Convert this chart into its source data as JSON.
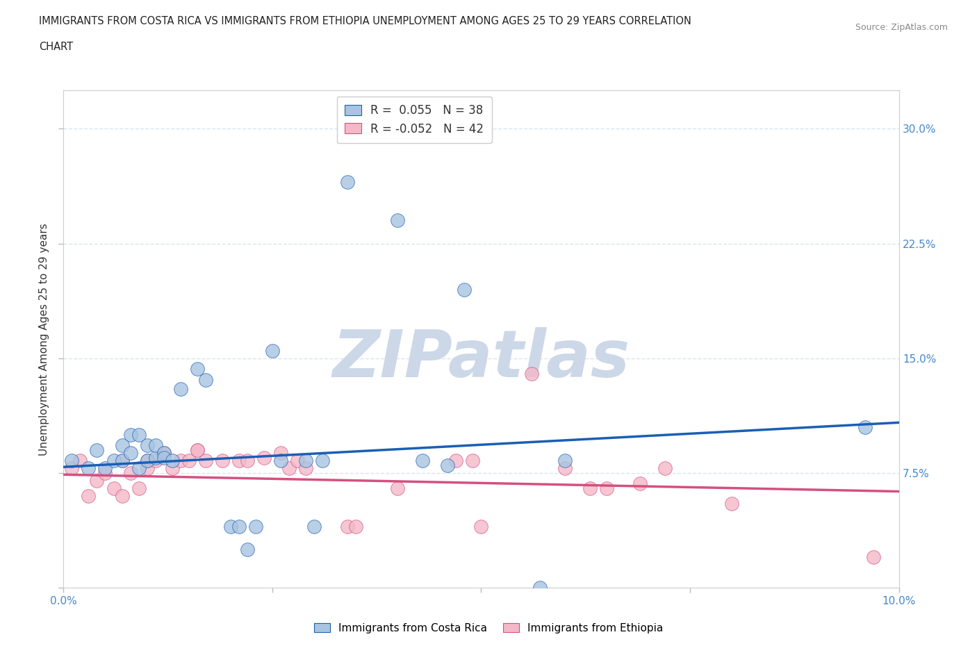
{
  "title_line1": "IMMIGRANTS FROM COSTA RICA VS IMMIGRANTS FROM ETHIOPIA UNEMPLOYMENT AMONG AGES 25 TO 29 YEARS CORRELATION",
  "title_line2": "CHART",
  "source": "Source: ZipAtlas.com",
  "ylabel": "Unemployment Among Ages 25 to 29 years",
  "xlim": [
    0.0,
    0.1
  ],
  "ylim": [
    0.0,
    0.325
  ],
  "xticks": [
    0.0,
    0.025,
    0.05,
    0.075,
    0.1
  ],
  "yticks": [
    0.0,
    0.075,
    0.15,
    0.225,
    0.3
  ],
  "blue_R": 0.055,
  "blue_N": 38,
  "pink_R": -0.052,
  "pink_N": 42,
  "blue_color": "#a8c4e0",
  "pink_color": "#f4b8c8",
  "blue_line_color": "#1a5fb4",
  "pink_line_color": "#d45080",
  "blue_trend": [
    0.079,
    0.108
  ],
  "pink_trend": [
    0.074,
    0.063
  ],
  "blue_scatter": [
    [
      0.001,
      0.083
    ],
    [
      0.003,
      0.078
    ],
    [
      0.004,
      0.09
    ],
    [
      0.005,
      0.078
    ],
    [
      0.006,
      0.083
    ],
    [
      0.007,
      0.083
    ],
    [
      0.007,
      0.093
    ],
    [
      0.008,
      0.1
    ],
    [
      0.008,
      0.088
    ],
    [
      0.009,
      0.078
    ],
    [
      0.009,
      0.1
    ],
    [
      0.01,
      0.093
    ],
    [
      0.01,
      0.083
    ],
    [
      0.011,
      0.085
    ],
    [
      0.011,
      0.093
    ],
    [
      0.012,
      0.088
    ],
    [
      0.012,
      0.085
    ],
    [
      0.013,
      0.083
    ],
    [
      0.014,
      0.13
    ],
    [
      0.016,
      0.143
    ],
    [
      0.017,
      0.136
    ],
    [
      0.02,
      0.04
    ],
    [
      0.021,
      0.04
    ],
    [
      0.022,
      0.025
    ],
    [
      0.023,
      0.04
    ],
    [
      0.025,
      0.155
    ],
    [
      0.026,
      0.083
    ],
    [
      0.029,
      0.083
    ],
    [
      0.03,
      0.04
    ],
    [
      0.031,
      0.083
    ],
    [
      0.034,
      0.265
    ],
    [
      0.04,
      0.24
    ],
    [
      0.043,
      0.083
    ],
    [
      0.046,
      0.08
    ],
    [
      0.048,
      0.195
    ],
    [
      0.057,
      0.0
    ],
    [
      0.06,
      0.083
    ],
    [
      0.096,
      0.105
    ]
  ],
  "pink_scatter": [
    [
      0.001,
      0.078
    ],
    [
      0.002,
      0.083
    ],
    [
      0.003,
      0.06
    ],
    [
      0.004,
      0.07
    ],
    [
      0.005,
      0.075
    ],
    [
      0.006,
      0.065
    ],
    [
      0.007,
      0.083
    ],
    [
      0.007,
      0.06
    ],
    [
      0.008,
      0.075
    ],
    [
      0.009,
      0.065
    ],
    [
      0.01,
      0.083
    ],
    [
      0.01,
      0.078
    ],
    [
      0.011,
      0.083
    ],
    [
      0.012,
      0.088
    ],
    [
      0.013,
      0.078
    ],
    [
      0.014,
      0.083
    ],
    [
      0.015,
      0.083
    ],
    [
      0.016,
      0.09
    ],
    [
      0.016,
      0.09
    ],
    [
      0.017,
      0.083
    ],
    [
      0.019,
      0.083
    ],
    [
      0.021,
      0.083
    ],
    [
      0.022,
      0.083
    ],
    [
      0.024,
      0.085
    ],
    [
      0.026,
      0.088
    ],
    [
      0.027,
      0.078
    ],
    [
      0.028,
      0.083
    ],
    [
      0.029,
      0.078
    ],
    [
      0.034,
      0.04
    ],
    [
      0.035,
      0.04
    ],
    [
      0.04,
      0.065
    ],
    [
      0.047,
      0.083
    ],
    [
      0.049,
      0.083
    ],
    [
      0.05,
      0.04
    ],
    [
      0.056,
      0.14
    ],
    [
      0.06,
      0.078
    ],
    [
      0.063,
      0.065
    ],
    [
      0.065,
      0.065
    ],
    [
      0.069,
      0.068
    ],
    [
      0.072,
      0.078
    ],
    [
      0.08,
      0.055
    ],
    [
      0.097,
      0.02
    ]
  ],
  "watermark": "ZIPatlas",
  "watermark_color": "#ccd8e8",
  "grid_color": "#d8e4f0",
  "background_color": "#ffffff",
  "tick_color": "#4488cc"
}
